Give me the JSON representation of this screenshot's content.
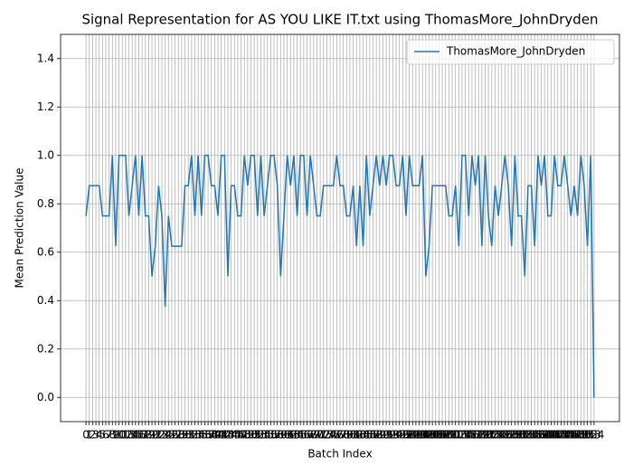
{
  "chart_data": {
    "type": "line",
    "title": "Signal Representation for AS YOU LIKE IT.txt using ThomasMore_JohnDryden",
    "x_label": "Batch Index",
    "y_label": "Mean Prediction Value",
    "categories": [
      "0",
      "1",
      "2",
      "3",
      "4",
      "5",
      "6",
      "7",
      "8",
      "9",
      "10",
      "11",
      "12",
      "13",
      "14",
      "15",
      "16",
      "17",
      "18",
      "19",
      "20",
      "21",
      "22",
      "23",
      "24",
      "25",
      "26",
      "27",
      "28",
      "29",
      "30",
      "31",
      "32",
      "33",
      "34",
      "35",
      "36",
      "37",
      "38",
      "39",
      "40",
      "41",
      "42",
      "43",
      "44",
      "45",
      "46",
      "47",
      "48",
      "49",
      "50",
      "51",
      "52",
      "53",
      "54",
      "55",
      "56",
      "57",
      "58",
      "59",
      "60",
      "61",
      "62",
      "63",
      "64",
      "65",
      "66",
      "67",
      "68",
      "69",
      "70",
      "71",
      "72",
      "73",
      "74",
      "75",
      "76",
      "77",
      "78",
      "79",
      "80",
      "81",
      "82",
      "83",
      "84",
      "85",
      "86",
      "87",
      "88",
      "89",
      "90",
      "91",
      "92",
      "93",
      "94",
      "95",
      "96",
      "97",
      "98",
      "99",
      "100",
      "101",
      "102",
      "103",
      "104",
      "105",
      "106",
      "107",
      "108",
      "109",
      "110",
      "111",
      "112",
      "113",
      "114",
      "115",
      "116",
      "117",
      "118",
      "119",
      "120",
      "121",
      "122",
      "123",
      "124",
      "125",
      "126",
      "127",
      "128",
      "129",
      "130",
      "131",
      "132",
      "133",
      "134",
      "135",
      "136",
      "137",
      "138",
      "139",
      "140",
      "141",
      "142",
      "143",
      "144",
      "145",
      "146",
      "147",
      "148",
      "149",
      "150",
      "151",
      "152",
      "153",
      "154"
    ],
    "series": [
      {
        "name": "ThomasMore_JohnDryden",
        "color": "#1f77b4",
        "values": [
          0.75,
          0.875,
          0.875,
          0.875,
          0.875,
          0.75,
          0.75,
          0.75,
          1,
          0.625,
          1,
          1,
          1,
          0.75,
          0.875,
          1,
          0.75,
          1,
          0.75,
          0.75,
          0.5,
          0.625,
          0.875,
          0.75,
          0.375,
          0.75,
          0.625,
          0.625,
          0.625,
          0.625,
          0.875,
          0.875,
          1,
          0.75,
          1,
          0.75,
          1,
          1,
          0.875,
          0.875,
          0.75,
          1,
          1,
          0.5,
          0.875,
          0.875,
          0.75,
          0.75,
          1,
          0.875,
          1,
          1,
          0.75,
          1,
          0.75,
          0.875,
          1,
          1,
          0.875,
          0.5,
          0.75,
          1,
          0.875,
          1,
          0.75,
          1,
          1,
          0.75,
          1,
          0.875,
          0.75,
          0.75,
          0.875,
          0.875,
          0.875,
          0.875,
          1,
          0.875,
          0.875,
          0.75,
          0.75,
          0.875,
          0.625,
          0.875,
          0.625,
          1,
          0.75,
          0.875,
          1,
          0.875,
          1,
          0.875,
          1,
          1,
          0.875,
          0.875,
          1,
          0.75,
          1,
          0.875,
          0.875,
          0.875,
          1,
          0.5,
          0.625,
          0.875,
          0.875,
          0.875,
          0.875,
          0.875,
          0.75,
          0.75,
          0.875,
          0.625,
          1,
          1,
          0.75,
          1,
          0.875,
          1,
          0.625,
          1,
          0.75,
          0.625,
          0.875,
          0.75,
          0.875,
          1,
          0.875,
          0.625,
          1,
          0.75,
          0.75,
          0.5,
          0.875,
          0.875,
          0.625,
          1,
          0.875,
          1,
          0.75,
          0.75,
          1,
          0.875,
          0.875,
          1,
          0.875,
          0.75,
          0.875,
          0.75,
          1,
          0.875,
          0.625,
          1,
          0
        ]
      }
    ],
    "ylim": [
      -0.1,
      1.5
    ],
    "yticks": [
      {
        "value": 0,
        "label": "0.0"
      },
      {
        "value": 0.2,
        "label": "0.2"
      },
      {
        "value": 0.4,
        "label": "0.4"
      },
      {
        "value": 0.6,
        "label": "0.6"
      },
      {
        "value": 0.8,
        "label": "0.8"
      },
      {
        "value": 1,
        "label": "1.0"
      },
      {
        "value": 1.2,
        "label": "1.2"
      },
      {
        "value": 1.4,
        "label": "1.4"
      }
    ],
    "grid": true,
    "legend": "upper right"
  }
}
